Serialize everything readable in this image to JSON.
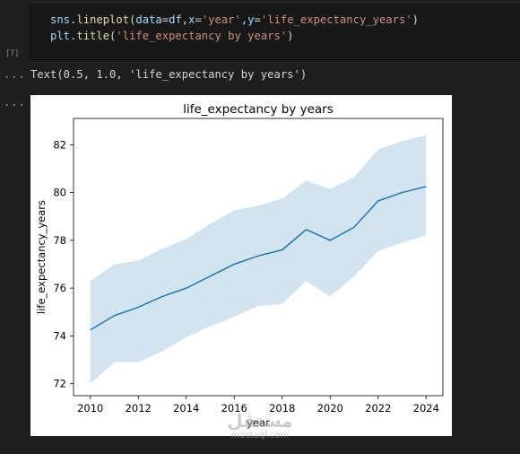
{
  "cell": {
    "code_lines": [
      [
        {
          "t": "sns",
          "c": "tok-id"
        },
        {
          "t": ".",
          "c": "tok-punc"
        },
        {
          "t": "lineplot",
          "c": "tok-fn"
        },
        {
          "t": "(",
          "c": "tok-punc"
        },
        {
          "t": "data",
          "c": "tok-id"
        },
        {
          "t": "=",
          "c": "tok-punc"
        },
        {
          "t": "df",
          "c": "tok-id"
        },
        {
          "t": ",",
          "c": "tok-punc"
        },
        {
          "t": "x",
          "c": "tok-id"
        },
        {
          "t": "=",
          "c": "tok-punc"
        },
        {
          "t": "'year'",
          "c": "tok-str"
        },
        {
          "t": ",",
          "c": "tok-punc"
        },
        {
          "t": "y",
          "c": "tok-id"
        },
        {
          "t": "=",
          "c": "tok-punc"
        },
        {
          "t": "'life_expectancy_years'",
          "c": "tok-str"
        },
        {
          "t": ")",
          "c": "tok-punc"
        }
      ],
      [
        {
          "t": "plt",
          "c": "tok-id"
        },
        {
          "t": ".",
          "c": "tok-punc"
        },
        {
          "t": "title",
          "c": "tok-fn"
        },
        {
          "t": "(",
          "c": "tok-punc"
        },
        {
          "t": "'life_expectancy by years'",
          "c": "tok-str"
        },
        {
          "t": ")",
          "c": "tok-punc"
        }
      ]
    ],
    "execution_count": "[7]"
  },
  "gutter": {
    "ellipsis": "..."
  },
  "output": {
    "text": "Text(0.5, 1.0, 'life_expectancy by years')"
  },
  "chart_data": {
    "type": "line",
    "title": "life_expectancy by years",
    "xlabel": "year",
    "ylabel": "life_expectancy_years",
    "x": [
      2010,
      2011,
      2012,
      2013,
      2014,
      2015,
      2016,
      2017,
      2018,
      2019,
      2020,
      2021,
      2022,
      2023,
      2024
    ],
    "series": [
      {
        "values": [
          74.25,
          74.85,
          75.2,
          75.65,
          76.0,
          76.5,
          77.0,
          77.35,
          77.6,
          78.45,
          78.0,
          78.55,
          79.65,
          80.0,
          80.25
        ],
        "ci_lower": [
          72.0,
          72.9,
          72.9,
          73.35,
          73.95,
          74.4,
          74.8,
          75.25,
          75.35,
          76.3,
          75.65,
          76.5,
          77.55,
          77.9,
          78.2
        ],
        "ci_upper": [
          76.3,
          77.0,
          77.15,
          77.65,
          78.05,
          78.7,
          79.25,
          79.45,
          79.75,
          80.5,
          80.15,
          80.65,
          81.8,
          82.15,
          82.4
        ],
        "color": "#1f77b4",
        "band_color": "#1f77b4"
      }
    ],
    "xticks": [
      2010,
      2012,
      2014,
      2016,
      2018,
      2020,
      2022,
      2024
    ],
    "yticks": [
      72,
      74,
      76,
      78,
      80,
      82
    ],
    "xlim": [
      2009.3,
      2024.7
    ],
    "ylim": [
      71.5,
      83.1
    ],
    "grid": false
  },
  "watermark": {
    "logo": "مستقل",
    "text": "mostaql.com"
  }
}
